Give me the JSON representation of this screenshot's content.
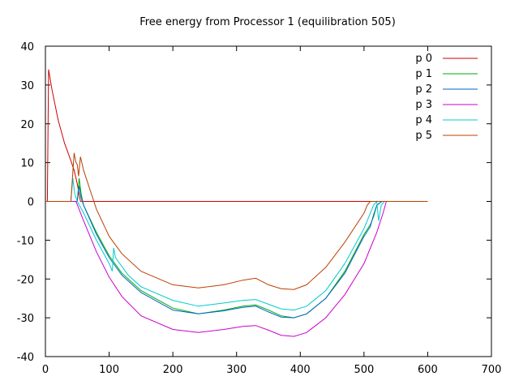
{
  "chart_data": {
    "type": "line",
    "title": "Free energy from Processor 1 (equilibration 505)",
    "xlabel": "",
    "ylabel": "",
    "xlim": [
      0,
      700
    ],
    "ylim": [
      -40,
      40
    ],
    "xticks": [
      0,
      100,
      200,
      300,
      400,
      500,
      600,
      700
    ],
    "yticks": [
      -40,
      -30,
      -20,
      -10,
      0,
      10,
      20,
      30,
      40
    ],
    "legend_position": "top-right",
    "grid": false,
    "series": [
      {
        "name": "p 0",
        "color": "#cc0000",
        "points": [
          [
            0,
            0
          ],
          [
            3,
            0
          ],
          [
            5,
            34
          ],
          [
            10,
            29
          ],
          [
            20,
            21
          ],
          [
            30,
            15
          ],
          [
            40,
            10.5
          ],
          [
            45,
            8
          ],
          [
            48,
            6
          ],
          [
            50,
            4.5
          ],
          [
            55,
            0
          ],
          [
            540,
            0
          ],
          [
            600,
            0
          ]
        ]
      },
      {
        "name": "p 1",
        "color": "#00aa00",
        "points": [
          [
            0,
            0
          ],
          [
            50,
            0
          ],
          [
            53,
            6
          ],
          [
            56,
            2
          ],
          [
            60,
            -1
          ],
          [
            80,
            -8
          ],
          [
            100,
            -14
          ],
          [
            120,
            -18.5
          ],
          [
            150,
            -23
          ],
          [
            200,
            -27.5
          ],
          [
            240,
            -29
          ],
          [
            280,
            -28
          ],
          [
            310,
            -27
          ],
          [
            330,
            -26.7
          ],
          [
            350,
            -28
          ],
          [
            370,
            -29.5
          ],
          [
            390,
            -30
          ],
          [
            410,
            -29
          ],
          [
            440,
            -25
          ],
          [
            470,
            -18
          ],
          [
            500,
            -8.5
          ],
          [
            510,
            -6
          ],
          [
            515,
            -4
          ],
          [
            520,
            -1
          ],
          [
            528,
            0
          ],
          [
            600,
            0
          ]
        ]
      },
      {
        "name": "p 2",
        "color": "#0066cc",
        "points": [
          [
            0,
            0
          ],
          [
            50,
            0
          ],
          [
            53,
            4
          ],
          [
            56,
            1
          ],
          [
            60,
            -1
          ],
          [
            80,
            -8.5
          ],
          [
            100,
            -14.5
          ],
          [
            120,
            -19
          ],
          [
            150,
            -23.5
          ],
          [
            200,
            -28
          ],
          [
            240,
            -29
          ],
          [
            280,
            -28.2
          ],
          [
            310,
            -27.3
          ],
          [
            330,
            -27
          ],
          [
            350,
            -28.5
          ],
          [
            370,
            -29.8
          ],
          [
            390,
            -30
          ],
          [
            410,
            -29
          ],
          [
            440,
            -25
          ],
          [
            470,
            -18.5
          ],
          [
            500,
            -9
          ],
          [
            510,
            -6.5
          ],
          [
            515,
            -3.5
          ],
          [
            520,
            -1
          ],
          [
            528,
            0
          ],
          [
            600,
            0
          ]
        ]
      },
      {
        "name": "p 3",
        "color": "#cc00cc",
        "points": [
          [
            0,
            0
          ],
          [
            45,
            0
          ],
          [
            48,
            0
          ],
          [
            60,
            -5
          ],
          [
            80,
            -13
          ],
          [
            100,
            -19.5
          ],
          [
            120,
            -24.5
          ],
          [
            150,
            -29.5
          ],
          [
            200,
            -33
          ],
          [
            240,
            -33.8
          ],
          [
            280,
            -33
          ],
          [
            310,
            -32.2
          ],
          [
            330,
            -32
          ],
          [
            350,
            -33.2
          ],
          [
            370,
            -34.5
          ],
          [
            390,
            -34.8
          ],
          [
            410,
            -33.8
          ],
          [
            440,
            -30
          ],
          [
            470,
            -24
          ],
          [
            500,
            -16
          ],
          [
            520,
            -8
          ],
          [
            530,
            -3
          ],
          [
            535,
            0
          ],
          [
            600,
            0
          ]
        ]
      },
      {
        "name": "p 4",
        "color": "#00cccc",
        "points": [
          [
            0,
            0
          ],
          [
            40,
            0
          ],
          [
            43,
            6
          ],
          [
            46,
            2
          ],
          [
            50,
            0
          ],
          [
            60,
            -3
          ],
          [
            80,
            -10
          ],
          [
            100,
            -16
          ],
          [
            105,
            -18
          ],
          [
            107,
            -12
          ],
          [
            110,
            -14.5
          ],
          [
            130,
            -19
          ],
          [
            150,
            -22
          ],
          [
            200,
            -25.5
          ],
          [
            240,
            -27
          ],
          [
            280,
            -26.2
          ],
          [
            310,
            -25.5
          ],
          [
            330,
            -25.3
          ],
          [
            350,
            -26.5
          ],
          [
            370,
            -27.7
          ],
          [
            390,
            -28
          ],
          [
            410,
            -27
          ],
          [
            440,
            -23
          ],
          [
            470,
            -16
          ],
          [
            500,
            -7
          ],
          [
            510,
            -3
          ],
          [
            515,
            -1
          ],
          [
            520,
            0
          ],
          [
            523,
            -5
          ],
          [
            527,
            -1
          ],
          [
            532,
            0
          ],
          [
            600,
            0
          ]
        ]
      },
      {
        "name": "p 5",
        "color": "#b84000",
        "points": [
          [
            0,
            0
          ],
          [
            40,
            0
          ],
          [
            45,
            12.5
          ],
          [
            48,
            10
          ],
          [
            50,
            9.5
          ],
          [
            52,
            6.5
          ],
          [
            55,
            11.5
          ],
          [
            60,
            8
          ],
          [
            70,
            3
          ],
          [
            80,
            -2
          ],
          [
            100,
            -9
          ],
          [
            120,
            -13.5
          ],
          [
            150,
            -18
          ],
          [
            200,
            -21.5
          ],
          [
            240,
            -22.3
          ],
          [
            280,
            -21.5
          ],
          [
            310,
            -20.3
          ],
          [
            330,
            -19.8
          ],
          [
            350,
            -21.5
          ],
          [
            370,
            -22.5
          ],
          [
            390,
            -22.7
          ],
          [
            410,
            -21.5
          ],
          [
            440,
            -17
          ],
          [
            470,
            -10.5
          ],
          [
            500,
            -3
          ],
          [
            505,
            -1
          ],
          [
            510,
            0
          ],
          [
            600,
            0
          ]
        ]
      }
    ]
  }
}
